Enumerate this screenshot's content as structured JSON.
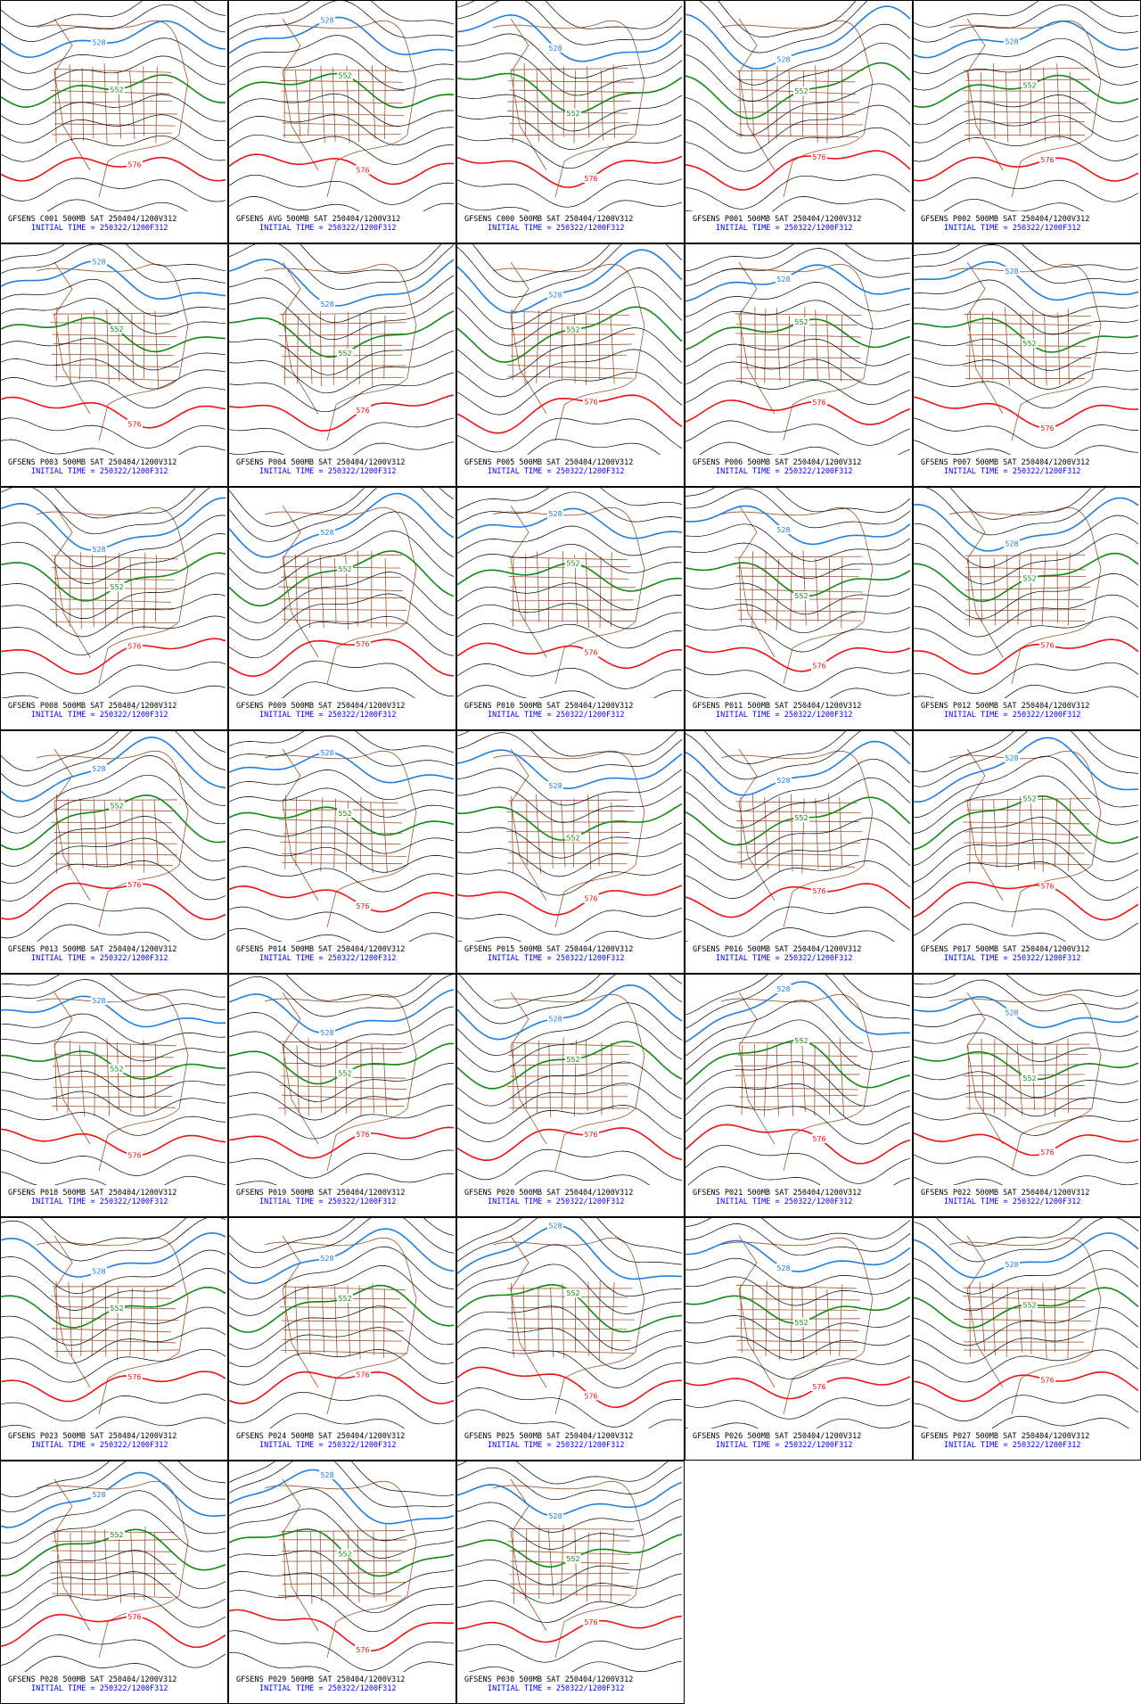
{
  "panels": [
    {
      "title": "GFSENS C001 500MB SAT 250404/1200V312",
      "initial_time": "INITIAL TIME = 250322/1200F312",
      "contour_labels": [
        528,
        552,
        576
      ]
    },
    {
      "title": "GFSENS AVG 500MB SAT 250404/1200V312",
      "initial_time": "INITIAL TIME = 250322/1200F312",
      "contour_labels": [
        528,
        552,
        576
      ]
    },
    {
      "title": "GFSENS C000 500MB SAT 250404/1200V312",
      "initial_time": "INITIAL TIME = 250322/1200F312",
      "contour_labels": [
        528,
        552,
        576
      ]
    },
    {
      "title": "GFSENS P001 500MB SAT 250404/1200V312",
      "initial_time": "INITIAL TIME = 250322/1200F312",
      "contour_labels": [
        528,
        552,
        576
      ]
    },
    {
      "title": "GFSENS P002 500MB SAT 250404/1200V312",
      "initial_time": "INITIAL TIME = 250322/1200F312",
      "contour_labels": [
        528,
        552,
        576
      ]
    },
    {
      "title": "GFSENS P003 500MB SAT 250404/1200V312",
      "initial_time": "INITIAL TIME = 250322/1200F312",
      "contour_labels": [
        528,
        552,
        576
      ]
    },
    {
      "title": "GFSENS P004 500MB SAT 250404/1200V312",
      "initial_time": "INITIAL TIME = 250322/1200F312",
      "contour_labels": [
        528,
        552,
        576
      ]
    },
    {
      "title": "GFSENS P005 500MB SAT 250404/1200V312",
      "initial_time": "INITIAL TIME = 250322/1200F312",
      "contour_labels": [
        528,
        552,
        576
      ]
    },
    {
      "title": "GFSENS P006 500MB SAT 250404/1200V312",
      "initial_time": "INITIAL TIME = 250322/1200F312",
      "contour_labels": [
        528,
        552,
        576
      ]
    },
    {
      "title": "GFSENS P007 500MB SAT 250404/1200V312",
      "initial_time": "INITIAL TIME = 250322/1200F312",
      "contour_labels": [
        528,
        552,
        576
      ]
    },
    {
      "title": "GFSENS P008 500MB SAT 250404/1200V312",
      "initial_time": "INITIAL TIME = 250322/1200F312",
      "contour_labels": [
        528,
        552,
        576
      ]
    },
    {
      "title": "GFSENS P009 500MB SAT 250404/1200V312",
      "initial_time": "INITIAL TIME = 250322/1200F312",
      "contour_labels": [
        528,
        552,
        576
      ]
    },
    {
      "title": "GFSENS P010 500MB SAT 250404/1200V312",
      "initial_time": "INITIAL TIME = 250322/1200F312",
      "contour_labels": [
        528,
        552,
        576
      ]
    },
    {
      "title": "GFSENS P011 500MB SAT 250404/1200V312",
      "initial_time": "INITIAL TIME = 250322/1200F312",
      "contour_labels": [
        528,
        552,
        576
      ]
    },
    {
      "title": "GFSENS P012 500MB SAT 250404/1200V312",
      "initial_time": "INITIAL TIME = 250322/1200F312",
      "contour_labels": [
        528,
        552,
        576
      ]
    },
    {
      "title": "GFSENS P013 500MB SAT 250404/1200V312",
      "initial_time": "INITIAL TIME = 250322/1200F312",
      "contour_labels": [
        528,
        552,
        576
      ]
    },
    {
      "title": "GFSENS P014 500MB SAT 250404/1200V312",
      "initial_time": "INITIAL TIME = 250322/1200F312",
      "contour_labels": [
        528,
        552,
        576
      ]
    },
    {
      "title": "GFSENS P015 500MB SAT 250404/1200V312",
      "initial_time": "INITIAL TIME = 250322/1200F312",
      "contour_labels": [
        528,
        552,
        576
      ]
    },
    {
      "title": "GFSENS P016 500MB SAT 250404/1200V312",
      "initial_time": "INITIAL TIME = 250322/1200F312",
      "contour_labels": [
        528,
        552,
        576
      ]
    },
    {
      "title": "GFSENS P017 500MB SAT 250404/1200V312",
      "initial_time": "INITIAL TIME = 250322/1200F312",
      "contour_labels": [
        528,
        552,
        576
      ]
    },
    {
      "title": "GFSENS P018 500MB SAT 250404/1200V312",
      "initial_time": "INITIAL TIME = 250322/1200F312",
      "contour_labels": [
        528,
        552,
        576
      ]
    },
    {
      "title": "GFSENS P019 500MB SAT 250404/1200V312",
      "initial_time": "INITIAL TIME = 250322/1200F312",
      "contour_labels": [
        528,
        552,
        576
      ]
    },
    {
      "title": "GFSENS P020 500MB SAT 250404/1200V312",
      "initial_time": "INITIAL TIME = 250322/1200F312",
      "contour_labels": [
        528,
        552,
        576
      ]
    },
    {
      "title": "GFSENS P021 500MB SAT 250404/1200V312",
      "initial_time": "INITIAL TIME = 250322/1200F312",
      "contour_labels": [
        528,
        552,
        576
      ]
    },
    {
      "title": "GFSENS P022 500MB SAT 250404/1200V312",
      "initial_time": "INITIAL TIME = 250322/1200F312",
      "contour_labels": [
        528,
        552,
        576
      ]
    },
    {
      "title": "GFSENS P023 500MB SAT 250404/1200V312",
      "initial_time": "INITIAL TIME = 250322/1200F312",
      "contour_labels": [
        528,
        552,
        576
      ]
    },
    {
      "title": "GFSENS P024 500MB SAT 250404/1200V312",
      "initial_time": "INITIAL TIME = 250322/1200F312",
      "contour_labels": [
        528,
        552,
        576
      ]
    },
    {
      "title": "GFSENS P025 500MB SAT 250404/1200V312",
      "initial_time": "INITIAL TIME = 250322/1200F312",
      "contour_labels": [
        528,
        552,
        576
      ]
    },
    {
      "title": "GFSENS P026 500MB SAT 250404/1200V312",
      "initial_time": "INITIAL TIME = 250322/1200F312",
      "contour_labels": [
        528,
        552,
        576
      ]
    },
    {
      "title": "GFSENS P027 500MB SAT 250404/1200V312",
      "initial_time": "INITIAL TIME = 250322/1200F312",
      "contour_labels": [
        528,
        552,
        576
      ]
    },
    {
      "title": "GFSENS P028 500MB SAT 250404/1200V312",
      "initial_time": "INITIAL TIME = 250322/1200F312",
      "contour_labels": [
        528,
        552,
        576
      ]
    },
    {
      "title": "GFSENS P029 500MB SAT 250404/1200V312",
      "initial_time": "INITIAL TIME = 250322/1200F312",
      "contour_labels": [
        528,
        552,
        576
      ]
    },
    {
      "title": "GFSENS P030 500MB SAT 250404/1200V312",
      "initial_time": "INITIAL TIME = 250322/1200F312",
      "contour_labels": [
        528,
        552,
        576
      ]
    }
  ]
}
